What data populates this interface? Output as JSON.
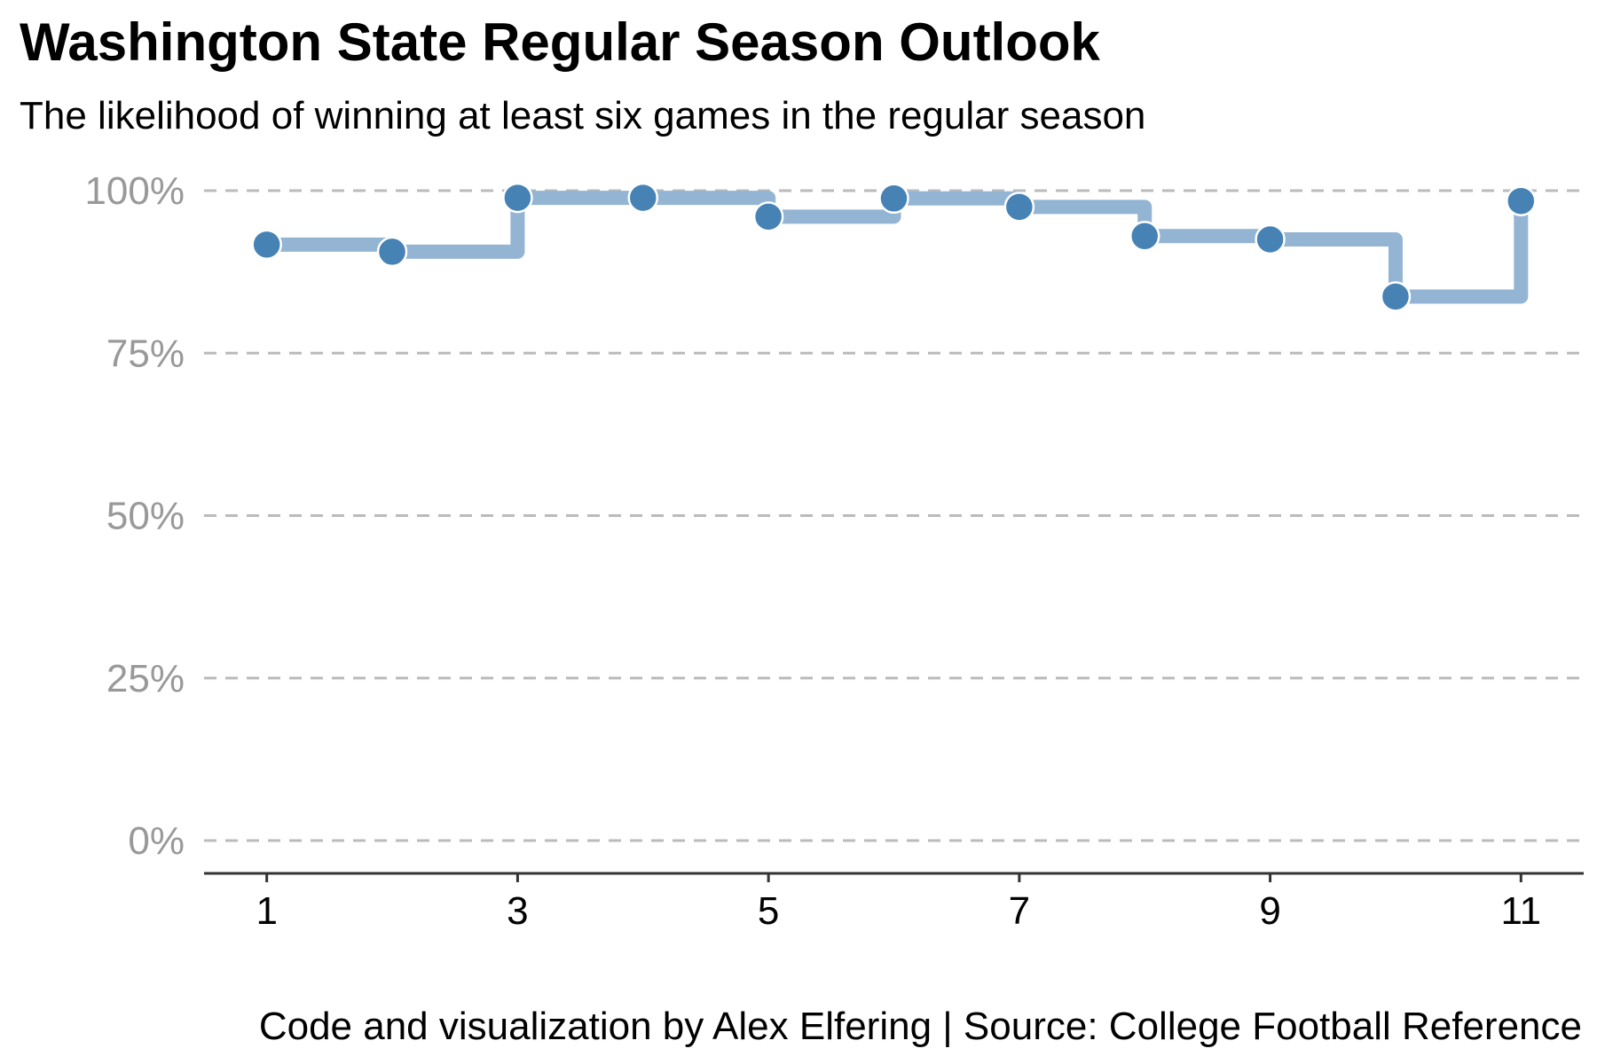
{
  "chart_data": {
    "type": "line",
    "title": "Washington State Regular Season Outlook",
    "subtitle": "The likelihood of winning at least six games in the regular season",
    "caption": "Code and visualization by Alex Elfering | Source: College Football Reference",
    "xlabel": "",
    "ylabel": "",
    "x": [
      1,
      2,
      3,
      4,
      5,
      6,
      7,
      8,
      9,
      10,
      11
    ],
    "series": [
      {
        "values": [
          0.917,
          0.906,
          0.989,
          0.989,
          0.96,
          0.988,
          0.975,
          0.93,
          0.925,
          0.837,
          0.984
        ]
      }
    ],
    "xlim": [
      0.5,
      11.5
    ],
    "ylim": [
      -0.05,
      1.0
    ],
    "x_ticks": [
      1,
      3,
      5,
      7,
      9,
      11
    ],
    "x_tick_labels": [
      "1",
      "3",
      "5",
      "7",
      "9",
      "11"
    ],
    "y_ticks": [
      0,
      0.25,
      0.5,
      0.75,
      1.0
    ],
    "y_tick_labels": [
      "0%",
      "25%",
      "50%",
      "75%",
      "100%"
    ],
    "line_style": "step",
    "grid": "horizontal dashed",
    "colors": {
      "step_line": "#93b4d3",
      "points": "#4682b4",
      "grid": "#bbbbbb",
      "axis": "#333333",
      "ytick": "#999999"
    }
  }
}
